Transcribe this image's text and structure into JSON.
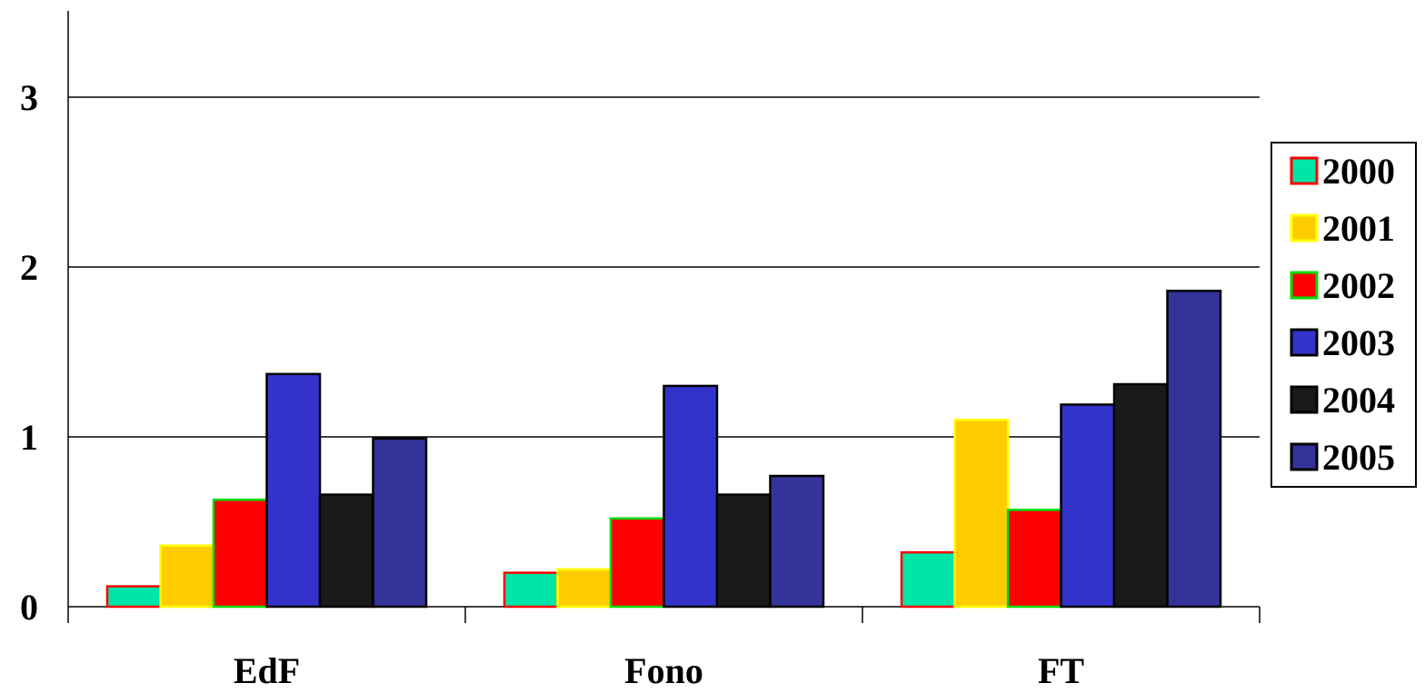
{
  "chart_data": {
    "type": "bar",
    "title": "",
    "xlabel": "",
    "ylabel": "",
    "categories": [
      "EdF",
      "Fono",
      "FT"
    ],
    "ylim": [
      0,
      3.5
    ],
    "yticks": [
      0,
      1,
      2,
      3
    ],
    "grid": true,
    "legend": "right",
    "series": [
      {
        "name": "2000",
        "values": [
          0.12,
          0.2,
          0.32
        ],
        "fill": "#00e6a8",
        "stroke": "#ff0000"
      },
      {
        "name": "2001",
        "values": [
          0.36,
          0.22,
          1.1
        ],
        "fill": "#ffcc00",
        "stroke": "#ffff00"
      },
      {
        "name": "2002",
        "values": [
          0.63,
          0.52,
          0.57
        ],
        "fill": "#ff0000",
        "stroke": "#00dd00"
      },
      {
        "name": "2003",
        "values": [
          1.37,
          1.3,
          1.19
        ],
        "fill": "#3333cc",
        "stroke": "#000000"
      },
      {
        "name": "2004",
        "values": [
          0.66,
          0.66,
          1.31
        ],
        "fill": "#1a1a1a",
        "stroke": "#000000"
      },
      {
        "name": "2005",
        "values": [
          0.99,
          0.77,
          1.86
        ],
        "fill": "#333399",
        "stroke": "#000000"
      }
    ]
  }
}
